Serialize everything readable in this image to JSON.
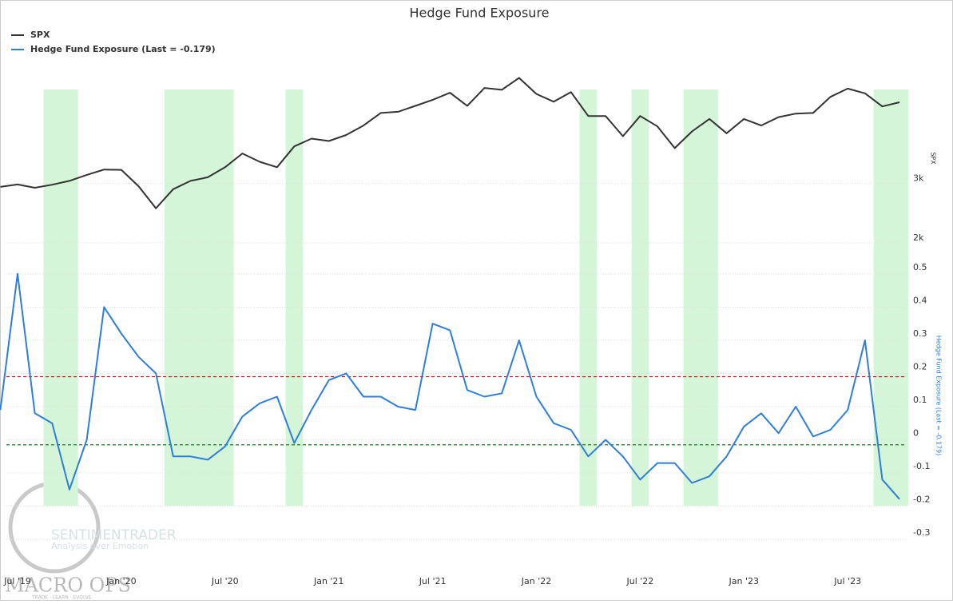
{
  "chart_data": {
    "type": "line",
    "title": "Hedge Fund Exposure",
    "x": [
      "2019-06",
      "2019-07",
      "2019-08",
      "2019-09",
      "2019-10",
      "2019-11",
      "2019-12",
      "2020-01",
      "2020-02",
      "2020-03",
      "2020-04",
      "2020-05",
      "2020-06",
      "2020-07",
      "2020-08",
      "2020-09",
      "2020-10",
      "2020-11",
      "2020-12",
      "2021-01",
      "2021-02",
      "2021-03",
      "2021-04",
      "2021-05",
      "2021-06",
      "2021-07",
      "2021-08",
      "2021-09",
      "2021-10",
      "2021-11",
      "2021-12",
      "2022-01",
      "2022-02",
      "2022-03",
      "2022-04",
      "2022-05",
      "2022-06",
      "2022-07",
      "2022-08",
      "2022-09",
      "2022-10",
      "2022-11",
      "2022-12",
      "2023-01",
      "2023-02",
      "2023-03",
      "2023-04",
      "2023-05",
      "2023-06",
      "2023-07",
      "2023-08",
      "2023-09",
      "2023-10"
    ],
    "series": [
      {
        "name": "SPX",
        "color": "#333333",
        "axis": "y",
        "values": [
          2940,
          2980,
          2925,
          2975,
          3040,
          3140,
          3230,
          3225,
          2950,
          2580,
          2900,
          3040,
          3100,
          3270,
          3500,
          3360,
          3270,
          3620,
          3750,
          3710,
          3810,
          3970,
          4180,
          4200,
          4300,
          4400,
          4520,
          4300,
          4600,
          4570,
          4770,
          4500,
          4370,
          4530,
          4130,
          4130,
          3790,
          4130,
          3955,
          3590,
          3870,
          4080,
          3840,
          4080,
          3970,
          4110,
          4170,
          4180,
          4450,
          4590,
          4510,
          4290,
          4360
        ]
      },
      {
        "name": "Hedge Fund Exposure (Last = -0.179)",
        "color": "#2f7ed8",
        "axis": "y2",
        "values": [
          0.09,
          0.5,
          0.08,
          0.05,
          -0.15,
          0.0,
          0.4,
          0.32,
          0.25,
          0.2,
          -0.05,
          -0.05,
          -0.06,
          -0.02,
          0.07,
          0.11,
          0.13,
          -0.01,
          0.09,
          0.18,
          0.2,
          0.13,
          0.13,
          0.1,
          0.09,
          0.35,
          0.33,
          0.15,
          0.13,
          0.14,
          0.3,
          0.13,
          0.05,
          0.03,
          -0.05,
          0.0,
          -0.05,
          -0.12,
          -0.07,
          -0.07,
          -0.13,
          -0.11,
          -0.05,
          0.04,
          0.08,
          0.02,
          0.1,
          0.01,
          0.03,
          0.09,
          0.3,
          -0.12,
          -0.179
        ]
      }
    ],
    "xticks": [
      {
        "value": "2019-07",
        "label": "Jul '19"
      },
      {
        "value": "2020-01",
        "label": "Jan '20"
      },
      {
        "value": "2020-07",
        "label": "Jul '20"
      },
      {
        "value": "2021-01",
        "label": "Jan '21"
      },
      {
        "value": "2021-07",
        "label": "Jul '21"
      },
      {
        "value": "2022-01",
        "label": "Jan '22"
      },
      {
        "value": "2022-07",
        "label": "Jul '22"
      },
      {
        "value": "2023-01",
        "label": "Jan '23"
      },
      {
        "value": "2023-07",
        "label": "Jul '23"
      }
    ],
    "ylabel": "SPX",
    "ylim": [
      1650,
      4870
    ],
    "yticks": [
      {
        "value": 2000,
        "label": "2k"
      },
      {
        "value": 3000,
        "label": "3k"
      }
    ],
    "y2label": "Hedge Fund Exposure (Last = -0.179)",
    "y2lim": [
      -0.36,
      0.555
    ],
    "y2ticks": [
      -0.3,
      -0.2,
      -0.1,
      0,
      0.1,
      0.2,
      0.3,
      0.4,
      0.5
    ],
    "hlines": [
      {
        "value": 0.19,
        "color": "#cc0000"
      },
      {
        "value": -0.015,
        "color": "#1a7a1a"
      }
    ],
    "shaded_regions": [
      {
        "start": "2019-09",
        "end": "2019-10"
      },
      {
        "start": "2020-04",
        "end": "2020-07"
      },
      {
        "start": "2020-11",
        "end": "2020-11"
      },
      {
        "start": "2022-04",
        "end": "2022-04"
      },
      {
        "start": "2022-07",
        "end": "2022-07"
      },
      {
        "start": "2022-10",
        "end": "2022-11"
      },
      {
        "start": "2023-09",
        "end": "2023-10"
      }
    ],
    "shade_color": "#d4f5d8",
    "grid": true,
    "legend": "top-left"
  },
  "watermark": {
    "brand": "SENTIMENTRADER",
    "tagline": "Analysis over Emotion",
    "logo": "MACRO OPS",
    "motto": "TRADE · LEARN · EVOLVE"
  }
}
